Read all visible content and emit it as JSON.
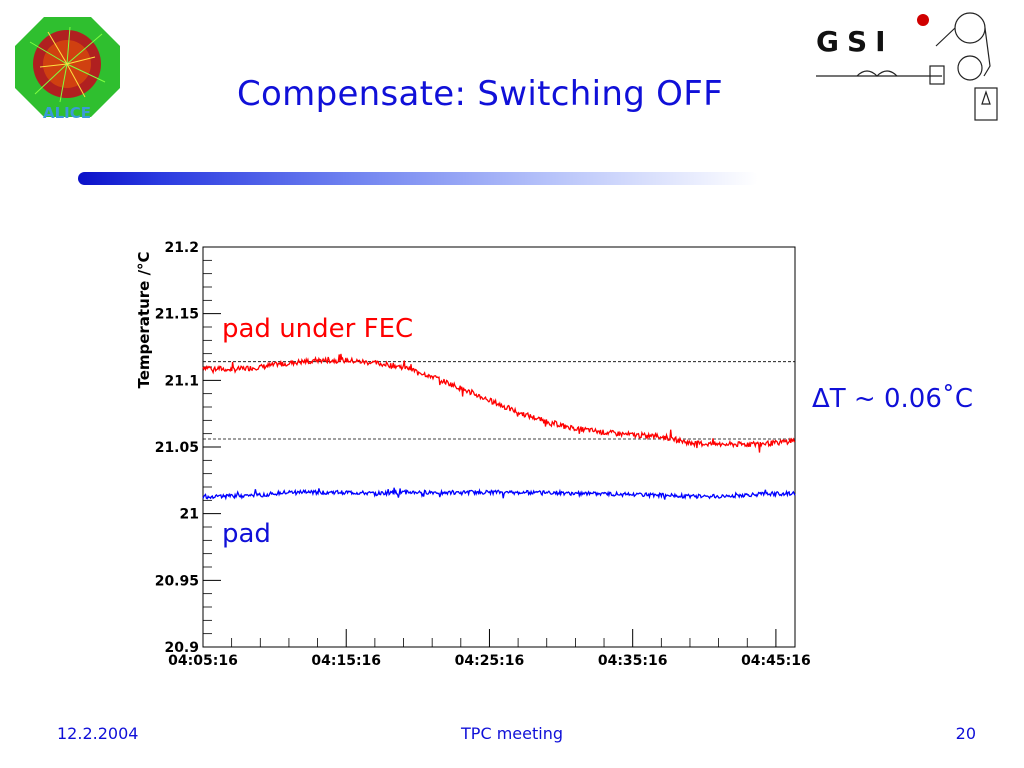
{
  "slide": {
    "title": "Compensate: Switching OFF",
    "delta_label": "ΔT ~ 0.06˚C"
  },
  "logos": {
    "left": "ALICE",
    "right": "GSI"
  },
  "footer": {
    "date": "12.2.2004",
    "center": "TPC meeting",
    "page": "20"
  },
  "colors": {
    "title": "#1010d8",
    "series_red": "#ff0000",
    "series_blue": "#0000ff"
  },
  "chart_data": {
    "type": "line",
    "title": "",
    "xlabel": "",
    "ylabel": "Temperature /°C",
    "xlim": [
      "04:05:16",
      "04:46:36"
    ],
    "ylim": [
      20.9,
      21.2
    ],
    "y_ticks": [
      "21.2",
      "21.15",
      "21.1",
      "21.05",
      "21",
      "20.95",
      "20.9"
    ],
    "x_ticks": [
      "04:05:16",
      "04:15:16",
      "04:25:16",
      "04:35:16",
      "04:45:16"
    ],
    "grid": false,
    "reference_lines": [
      21.114,
      21.056
    ],
    "annotations": [
      "pad under FEC",
      "pad"
    ],
    "series": [
      {
        "name": "pad under FEC",
        "color": "#ff0000",
        "x": [
          "04:05:16",
          "04:07:16",
          "04:09:16",
          "04:11:16",
          "04:13:16",
          "04:15:16",
          "04:17:16",
          "04:19:16",
          "04:21:16",
          "04:23:16",
          "04:25:16",
          "04:27:16",
          "04:29:16",
          "04:31:16",
          "04:33:16",
          "04:35:16",
          "04:37:16",
          "04:39:16",
          "04:41:16",
          "04:43:16",
          "04:45:16",
          "04:46:36"
        ],
        "values": [
          21.11,
          21.108,
          21.11,
          21.113,
          21.115,
          21.115,
          21.113,
          21.11,
          21.103,
          21.094,
          21.085,
          21.076,
          21.069,
          21.064,
          21.061,
          21.059,
          21.058,
          21.053,
          21.052,
          21.052,
          21.053,
          21.055
        ]
      },
      {
        "name": "pad",
        "color": "#0000ff",
        "x": [
          "04:05:16",
          "04:07:16",
          "04:09:16",
          "04:11:16",
          "04:13:16",
          "04:15:16",
          "04:17:16",
          "04:19:16",
          "04:21:16",
          "04:23:16",
          "04:25:16",
          "04:27:16",
          "04:29:16",
          "04:31:16",
          "04:33:16",
          "04:35:16",
          "04:37:16",
          "04:39:16",
          "04:41:16",
          "04:43:16",
          "04:45:16",
          "04:46:36"
        ],
        "values": [
          21.013,
          21.013,
          21.014,
          21.016,
          21.016,
          21.016,
          21.015,
          21.016,
          21.016,
          21.016,
          21.016,
          21.016,
          21.016,
          21.015,
          21.015,
          21.014,
          21.014,
          21.013,
          21.013,
          21.014,
          21.015,
          21.015
        ]
      }
    ]
  }
}
